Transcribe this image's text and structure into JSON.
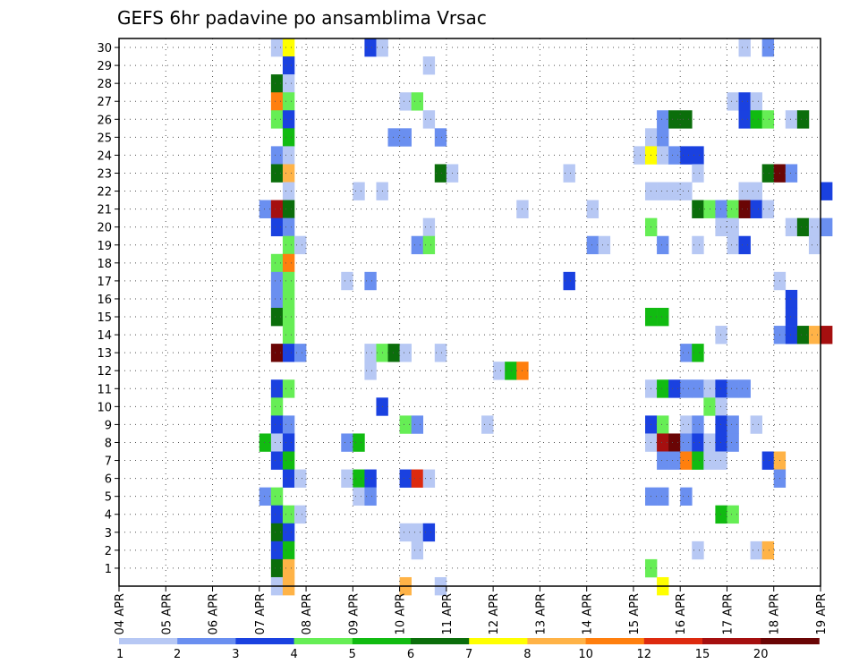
{
  "chart_data": {
    "type": "heatmap",
    "title": "GEFS 6hr padavine po ansamblima Vrsac",
    "x_tick_labels": [
      "04 APR",
      "05 APR",
      "06 APR",
      "07 APR",
      "08 APR",
      "09 APR",
      "10 APR",
      "11 APR",
      "12 APR",
      "13 APR",
      "14 APR",
      "15 APR",
      "16 APR",
      "17 APR",
      "18 APR",
      "19 APR"
    ],
    "y_tick_labels": [
      "1",
      "2",
      "3",
      "4",
      "5",
      "6",
      "7",
      "8",
      "9",
      "10",
      "11",
      "12",
      "13",
      "14",
      "15",
      "16",
      "17",
      "18",
      "19",
      "20",
      "21",
      "22",
      "23",
      "24",
      "25",
      "26",
      "27",
      "28",
      "29",
      "30"
    ],
    "xlim_days": [
      0,
      15
    ],
    "y_range_members": [
      0,
      30
    ],
    "grid": "dotted",
    "colorbar": {
      "labels": [
        "1",
        "2",
        "3",
        "4",
        "5",
        "6",
        "7",
        "8",
        "10",
        "12",
        "15",
        "20"
      ],
      "colors": [
        "#b7c8f4",
        "#6a8ff0",
        "#1a41e0",
        "#66ee55",
        "#11bb11",
        "#0b6e0b",
        "#ffff00",
        "#ffb347",
        "#ff7f0e",
        "#dd2a0f",
        "#a50f0f",
        "#6a0505"
      ]
    },
    "cells": [
      [
        30,
        3.25,
        1
      ],
      [
        30,
        3.5,
        7
      ],
      [
        30,
        5.25,
        3
      ],
      [
        30,
        5.5,
        1
      ],
      [
        30,
        13.25,
        1
      ],
      [
        30,
        13.75,
        2
      ],
      [
        29,
        3.5,
        3
      ],
      [
        29,
        6.5,
        1
      ],
      [
        28,
        3.25,
        6
      ],
      [
        28,
        3.5,
        1
      ],
      [
        27,
        3.25,
        9
      ],
      [
        27,
        3.5,
        4
      ],
      [
        27,
        6.0,
        1
      ],
      [
        27,
        6.25,
        4
      ],
      [
        27,
        13.0,
        1
      ],
      [
        27,
        13.25,
        3
      ],
      [
        27,
        13.5,
        1
      ],
      [
        26,
        3.25,
        4
      ],
      [
        26,
        3.5,
        3
      ],
      [
        26,
        6.5,
        1
      ],
      [
        26,
        11.5,
        2
      ],
      [
        26,
        11.75,
        6
      ],
      [
        26,
        12.0,
        6
      ],
      [
        26,
        13.25,
        3
      ],
      [
        26,
        13.5,
        5
      ],
      [
        26,
        13.75,
        4
      ],
      [
        26,
        14.25,
        1
      ],
      [
        26,
        14.5,
        6
      ],
      [
        25,
        3.5,
        5
      ],
      [
        25,
        5.75,
        2
      ],
      [
        25,
        6.0,
        2
      ],
      [
        25,
        6.75,
        2
      ],
      [
        25,
        11.25,
        1
      ],
      [
        25,
        11.5,
        2
      ],
      [
        24,
        3.25,
        2
      ],
      [
        24,
        3.5,
        1
      ],
      [
        24,
        11.0,
        1
      ],
      [
        24,
        11.25,
        7
      ],
      [
        24,
        11.5,
        1
      ],
      [
        24,
        11.75,
        2
      ],
      [
        24,
        12.0,
        3
      ],
      [
        24,
        12.25,
        3
      ],
      [
        23,
        3.25,
        6
      ],
      [
        23,
        3.5,
        8
      ],
      [
        23,
        6.75,
        6
      ],
      [
        23,
        7.0,
        1
      ],
      [
        23,
        9.5,
        1
      ],
      [
        23,
        12.25,
        1
      ],
      [
        23,
        13.75,
        6
      ],
      [
        23,
        14.0,
        12
      ],
      [
        23,
        14.25,
        2
      ],
      [
        22,
        3.5,
        1
      ],
      [
        22,
        5.0,
        1
      ],
      [
        22,
        5.5,
        1
      ],
      [
        22,
        11.25,
        1
      ],
      [
        22,
        11.5,
        1
      ],
      [
        22,
        11.75,
        1
      ],
      [
        22,
        12.0,
        1
      ],
      [
        22,
        13.25,
        1
      ],
      [
        22,
        13.5,
        1
      ],
      [
        22,
        15.0,
        3
      ],
      [
        21,
        3.0,
        2
      ],
      [
        21,
        3.25,
        11
      ],
      [
        21,
        3.5,
        6
      ],
      [
        21,
        8.5,
        1
      ],
      [
        21,
        10.0,
        1
      ],
      [
        21,
        12.25,
        6
      ],
      [
        21,
        12.5,
        4
      ],
      [
        21,
        12.75,
        2
      ],
      [
        21,
        13.0,
        4
      ],
      [
        21,
        13.25,
        12
      ],
      [
        21,
        13.5,
        3
      ],
      [
        21,
        13.75,
        1
      ],
      [
        20,
        3.25,
        3
      ],
      [
        20,
        3.5,
        2
      ],
      [
        20,
        6.5,
        1
      ],
      [
        20,
        11.25,
        4
      ],
      [
        20,
        12.75,
        1
      ],
      [
        20,
        13.0,
        1
      ],
      [
        20,
        14.25,
        1
      ],
      [
        20,
        14.5,
        6
      ],
      [
        20,
        14.75,
        1
      ],
      [
        20,
        15.0,
        2
      ],
      [
        19,
        3.5,
        4
      ],
      [
        19,
        3.75,
        1
      ],
      [
        19,
        6.25,
        2
      ],
      [
        19,
        6.5,
        4
      ],
      [
        19,
        10.0,
        2
      ],
      [
        19,
        10.25,
        1
      ],
      [
        19,
        11.5,
        2
      ],
      [
        19,
        12.25,
        1
      ],
      [
        19,
        13.0,
        1
      ],
      [
        19,
        13.25,
        3
      ],
      [
        19,
        14.75,
        1
      ],
      [
        18,
        3.25,
        4
      ],
      [
        18,
        3.5,
        9
      ],
      [
        17,
        3.25,
        2
      ],
      [
        17,
        3.5,
        4
      ],
      [
        17,
        4.75,
        1
      ],
      [
        17,
        5.25,
        2
      ],
      [
        17,
        9.5,
        3
      ],
      [
        17,
        14.0,
        1
      ],
      [
        16,
        3.25,
        2
      ],
      [
        16,
        3.5,
        4
      ],
      [
        16,
        14.25,
        3
      ],
      [
        15,
        3.25,
        6
      ],
      [
        15,
        3.5,
        4
      ],
      [
        15,
        11.25,
        5
      ],
      [
        15,
        11.5,
        5
      ],
      [
        15,
        14.25,
        3
      ],
      [
        14,
        3.5,
        4
      ],
      [
        14,
        12.75,
        1
      ],
      [
        14,
        14.0,
        2
      ],
      [
        14,
        14.25,
        3
      ],
      [
        14,
        14.5,
        6
      ],
      [
        14,
        14.75,
        8
      ],
      [
        14,
        15.0,
        11
      ],
      [
        13,
        3.25,
        12
      ],
      [
        13,
        3.5,
        3
      ],
      [
        13,
        3.75,
        2
      ],
      [
        13,
        5.25,
        1
      ],
      [
        13,
        5.5,
        4
      ],
      [
        13,
        5.75,
        6
      ],
      [
        13,
        6.0,
        1
      ],
      [
        13,
        6.75,
        1
      ],
      [
        13,
        12.0,
        2
      ],
      [
        13,
        12.25,
        5
      ],
      [
        12,
        5.25,
        1
      ],
      [
        12,
        8.0,
        1
      ],
      [
        12,
        8.25,
        5
      ],
      [
        12,
        8.5,
        9
      ],
      [
        11,
        3.25,
        3
      ],
      [
        11,
        3.5,
        4
      ],
      [
        11,
        11.25,
        1
      ],
      [
        11,
        11.5,
        5
      ],
      [
        11,
        11.75,
        3
      ],
      [
        11,
        12.0,
        2
      ],
      [
        11,
        12.25,
        2
      ],
      [
        11,
        12.5,
        1
      ],
      [
        11,
        12.75,
        3
      ],
      [
        11,
        13.0,
        2
      ],
      [
        11,
        13.25,
        2
      ],
      [
        10,
        3.25,
        4
      ],
      [
        10,
        5.5,
        3
      ],
      [
        10,
        12.5,
        4
      ],
      [
        10,
        12.75,
        1
      ],
      [
        9,
        3.25,
        3
      ],
      [
        9,
        3.5,
        2
      ],
      [
        9,
        6.0,
        4
      ],
      [
        9,
        6.25,
        2
      ],
      [
        9,
        7.75,
        1
      ],
      [
        9,
        11.25,
        3
      ],
      [
        9,
        11.5,
        4
      ],
      [
        9,
        12.0,
        1
      ],
      [
        9,
        12.25,
        2
      ],
      [
        9,
        12.75,
        3
      ],
      [
        9,
        13.0,
        2
      ],
      [
        9,
        13.5,
        1
      ],
      [
        8,
        3.0,
        5
      ],
      [
        8,
        3.25,
        1
      ],
      [
        8,
        3.5,
        3
      ],
      [
        8,
        4.75,
        2
      ],
      [
        8,
        5.0,
        5
      ],
      [
        8,
        11.25,
        1
      ],
      [
        8,
        11.5,
        11
      ],
      [
        8,
        11.75,
        12
      ],
      [
        8,
        12.0,
        2
      ],
      [
        8,
        12.25,
        3
      ],
      [
        8,
        12.5,
        1
      ],
      [
        8,
        12.75,
        3
      ],
      [
        8,
        13.0,
        2
      ],
      [
        7,
        3.25,
        3
      ],
      [
        7,
        3.5,
        5
      ],
      [
        7,
        11.5,
        2
      ],
      [
        7,
        11.75,
        2
      ],
      [
        7,
        12.0,
        9
      ],
      [
        7,
        12.25,
        5
      ],
      [
        7,
        12.5,
        1
      ],
      [
        7,
        12.75,
        1
      ],
      [
        7,
        13.75,
        3
      ],
      [
        7,
        14.0,
        8
      ],
      [
        6,
        3.5,
        3
      ],
      [
        6,
        3.75,
        1
      ],
      [
        6,
        4.75,
        1
      ],
      [
        6,
        5.0,
        5
      ],
      [
        6,
        5.25,
        3
      ],
      [
        6,
        6.0,
        3
      ],
      [
        6,
        6.25,
        10
      ],
      [
        6,
        6.5,
        1
      ],
      [
        6,
        14.0,
        2
      ],
      [
        5,
        3.0,
        2
      ],
      [
        5,
        3.25,
        4
      ],
      [
        5,
        5.0,
        1
      ],
      [
        5,
        5.25,
        2
      ],
      [
        5,
        11.25,
        2
      ],
      [
        5,
        11.5,
        2
      ],
      [
        5,
        12.0,
        2
      ],
      [
        4,
        3.25,
        3
      ],
      [
        4,
        3.5,
        4
      ],
      [
        4,
        3.75,
        1
      ],
      [
        4,
        12.75,
        5
      ],
      [
        4,
        13.0,
        4
      ],
      [
        3,
        3.25,
        6
      ],
      [
        3,
        3.5,
        3
      ],
      [
        3,
        6.0,
        1
      ],
      [
        3,
        6.25,
        1
      ],
      [
        3,
        6.5,
        3
      ],
      [
        2,
        3.25,
        3
      ],
      [
        2,
        3.5,
        5
      ],
      [
        2,
        6.25,
        1
      ],
      [
        2,
        12.25,
        1
      ],
      [
        2,
        13.5,
        1
      ],
      [
        2,
        13.75,
        8
      ],
      [
        1,
        3.25,
        6
      ],
      [
        1,
        3.5,
        8
      ],
      [
        1,
        11.25,
        4
      ],
      [
        0,
        3.25,
        1
      ],
      [
        0,
        3.5,
        8
      ],
      [
        0,
        6.0,
        8
      ],
      [
        0,
        6.75,
        1
      ],
      [
        0,
        11.5,
        7
      ]
    ]
  }
}
